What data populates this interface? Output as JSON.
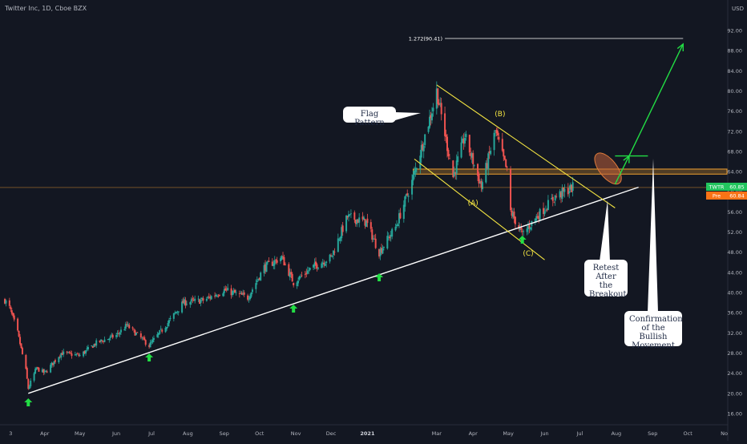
{
  "header": {
    "symbol_title": "Twitter Inc, 1D, Cboe BZX",
    "currency": "USD"
  },
  "price_badges": {
    "last_label": "TWTR",
    "last_value": "60.85",
    "prev_label": "Pre",
    "prev_value": "60.84"
  },
  "annotations": {
    "fib_label": "1.272(90.41)",
    "flag_pattern": "Flag Pattern",
    "wave_a": "(A)",
    "wave_b": "(B)",
    "wave_c": "(C)",
    "retest": [
      "Retest",
      "After the",
      "Breakout"
    ],
    "confirmation": [
      "Confirmation",
      "of the Bullish",
      "Movement"
    ]
  },
  "colors": {
    "background": "#131722",
    "up_candle": "#26a69a",
    "down_candle": "#ef5350",
    "trendline": "#ffffff",
    "channel": "#f5e642",
    "target_arrow": "#22dd44",
    "resistance_zone": "#f0a030",
    "badge_last": "#22c55e",
    "badge_pre": "#f97316",
    "support_arrow": "#22dd44"
  },
  "chart_data": {
    "type": "candlestick",
    "symbol": "TWTR",
    "timeframe": "1D",
    "y_axis": {
      "min": 14,
      "max": 96,
      "ticks": [
        "92.00",
        "88.00",
        "84.00",
        "80.00",
        "76.00",
        "72.00",
        "68.00",
        "64.00",
        "60.00",
        "56.00",
        "52.00",
        "48.00",
        "44.00",
        "40.00",
        "36.00",
        "32.00",
        "28.00",
        "24.00",
        "20.00",
        "16.00"
      ]
    },
    "x_axis": {
      "ticks": [
        "3",
        "Apr",
        "May",
        "Jun",
        "Jul",
        "Aug",
        "Sep",
        "Oct",
        "Nov",
        "Dec",
        "2021",
        "Mar",
        "Apr",
        "May",
        "Jun",
        "Jul",
        "Aug",
        "Sep",
        "Oct",
        "No"
      ]
    },
    "last_price": 60.85,
    "pre_price": 60.84,
    "fib_target": 90.41,
    "resistance_zone": [
      63.5,
      64.5
    ],
    "price_path": [
      {
        "date": "2020-02-27",
        "close": 38.5
      },
      {
        "date": "2020-03-02",
        "close": 37.0
      },
      {
        "date": "2020-03-09",
        "close": 32.0
      },
      {
        "date": "2020-03-16",
        "close": 24.5
      },
      {
        "date": "2020-03-18",
        "close": 21.0
      },
      {
        "date": "2020-03-25",
        "close": 25.0
      },
      {
        "date": "2020-04-01",
        "close": 24.0
      },
      {
        "date": "2020-04-15",
        "close": 28.0
      },
      {
        "date": "2020-05-01",
        "close": 27.5
      },
      {
        "date": "2020-05-15",
        "close": 30.0
      },
      {
        "date": "2020-06-01",
        "close": 31.5
      },
      {
        "date": "2020-06-10",
        "close": 33.5
      },
      {
        "date": "2020-06-29",
        "close": 29.5
      },
      {
        "date": "2020-07-15",
        "close": 34.0
      },
      {
        "date": "2020-07-28",
        "close": 38.0
      },
      {
        "date": "2020-08-15",
        "close": 38.5
      },
      {
        "date": "2020-09-01",
        "close": 40.5
      },
      {
        "date": "2020-09-21",
        "close": 39.0
      },
      {
        "date": "2020-10-05",
        "close": 45.0
      },
      {
        "date": "2020-10-20",
        "close": 47.0
      },
      {
        "date": "2020-10-30",
        "close": 42.0
      },
      {
        "date": "2020-11-15",
        "close": 45.0
      },
      {
        "date": "2020-12-01",
        "close": 47.0
      },
      {
        "date": "2020-12-15",
        "close": 55.0
      },
      {
        "date": "2020-12-31",
        "close": 54.0
      },
      {
        "date": "2021-01-11",
        "close": 48.0
      },
      {
        "date": "2021-01-25",
        "close": 53.0
      },
      {
        "date": "2021-02-08",
        "close": 62.0
      },
      {
        "date": "2021-02-26",
        "close": 77.0
      },
      {
        "date": "2021-03-01",
        "close": 80.0
      },
      {
        "date": "2021-03-15",
        "close": 63.0
      },
      {
        "date": "2021-03-25",
        "close": 71.0
      },
      {
        "date": "2021-04-08",
        "close": 61.0
      },
      {
        "date": "2021-04-20",
        "close": 72.0
      },
      {
        "date": "2021-04-30",
        "close": 64.0
      },
      {
        "date": "2021-05-01",
        "close": 57.0
      },
      {
        "date": "2021-05-13",
        "close": 51.5
      },
      {
        "date": "2021-05-25",
        "close": 55.0
      },
      {
        "date": "2021-06-10",
        "close": 59.0
      },
      {
        "date": "2021-06-25",
        "close": 60.85
      }
    ]
  }
}
